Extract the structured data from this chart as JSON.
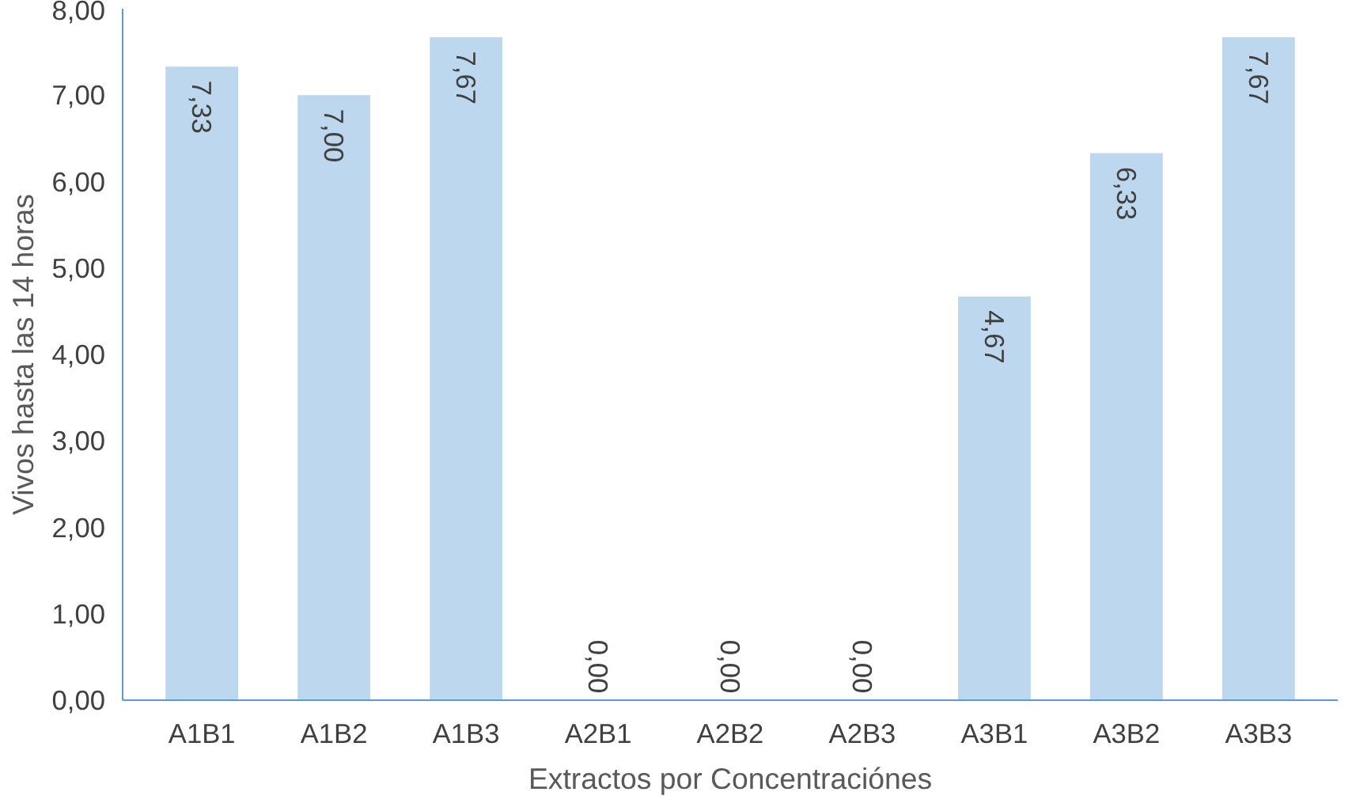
{
  "chart_data": {
    "type": "bar",
    "xlabel": "Extractos por Concentraciónes",
    "ylabel": "Vivos hasta las 14 horas",
    "categories": [
      "A1B1",
      "A1B2",
      "A1B3",
      "A2B1",
      "A2B2",
      "A2B3",
      "A3B1",
      "A3B2",
      "A3B3"
    ],
    "values": [
      7.33,
      7.0,
      7.67,
      0,
      0,
      0,
      4.67,
      6.33,
      7.67
    ],
    "value_labels": [
      "7,33",
      "7,00",
      "7,67",
      "0,00",
      "0,00",
      "0,00",
      "4,67",
      "6,33",
      "7,67"
    ],
    "color": "#bdd7ee",
    "ylim": [
      0,
      8
    ],
    "yticks": [
      {
        "value": 0,
        "label": "0,00"
      },
      {
        "value": 1,
        "label": "1,00"
      },
      {
        "value": 2,
        "label": "2,00"
      },
      {
        "value": 3,
        "label": "3,00"
      },
      {
        "value": 4,
        "label": "4,00"
      },
      {
        "value": 5,
        "label": "5,00"
      },
      {
        "value": 6,
        "label": "6,00"
      },
      {
        "value": 7,
        "label": "7,00"
      },
      {
        "value": 8,
        "label": "8,00"
      }
    ]
  }
}
